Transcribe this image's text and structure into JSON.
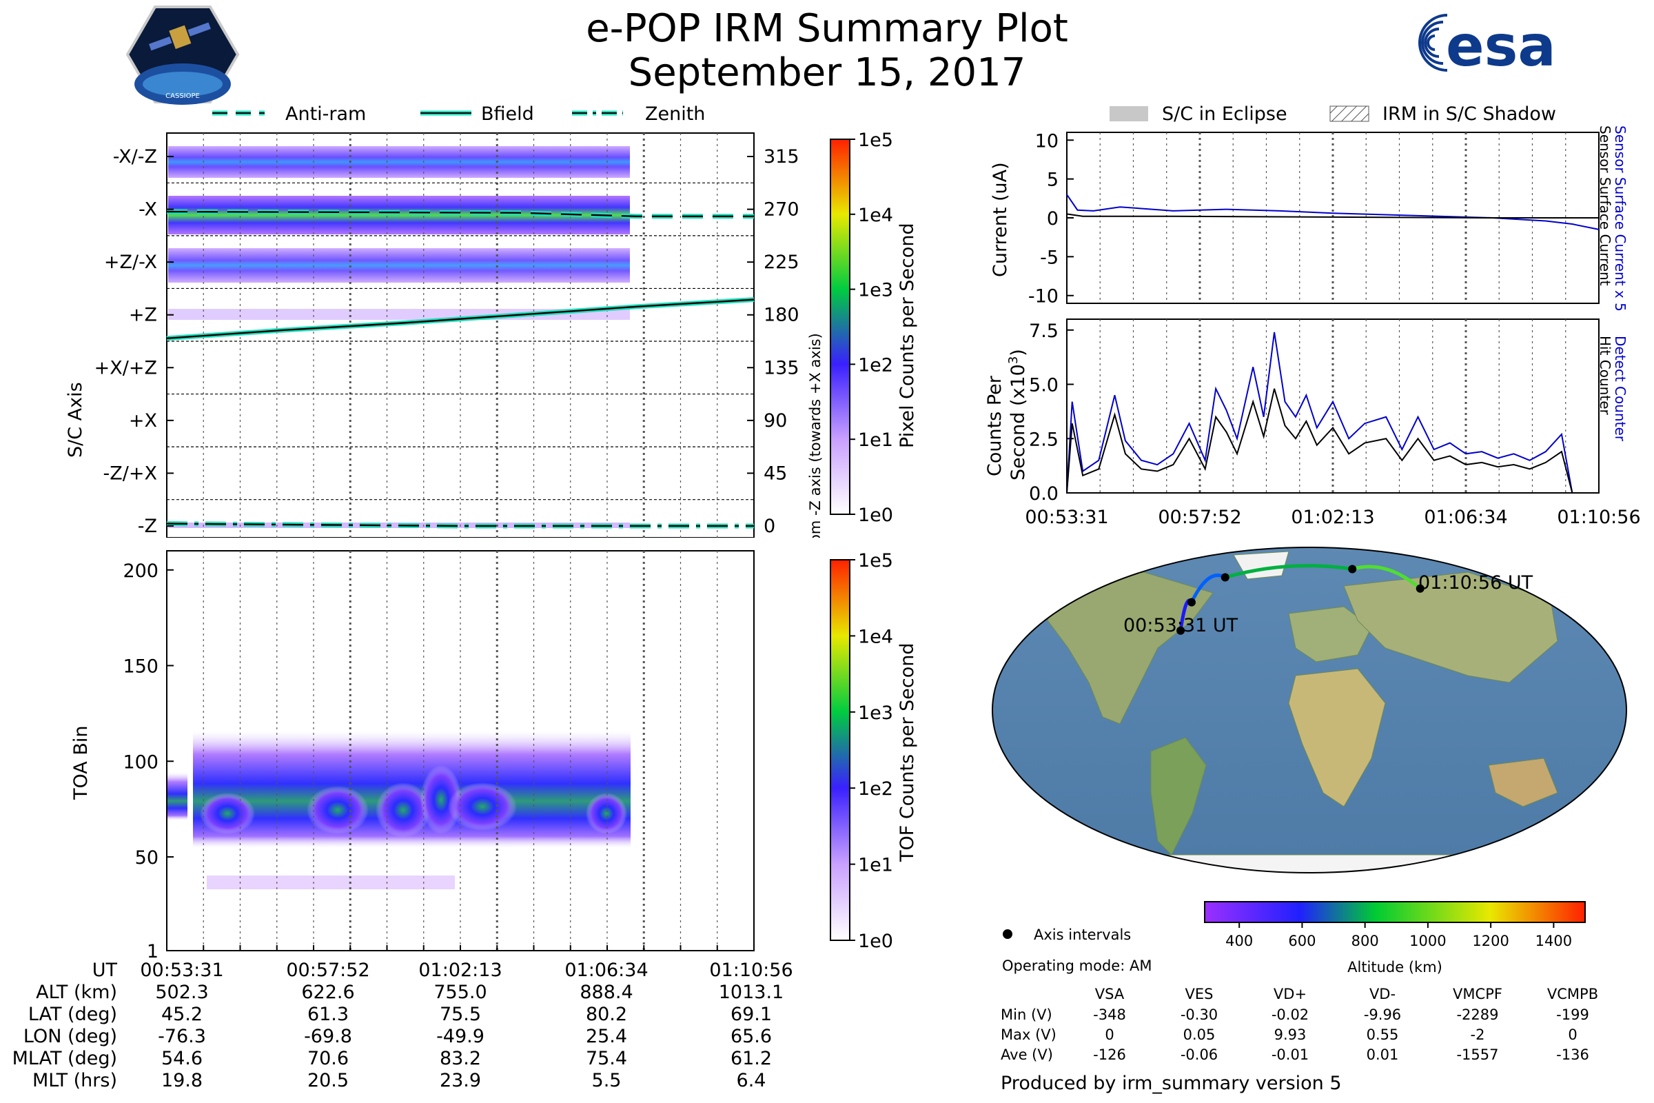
{
  "header": {
    "title": "e-POP IRM Summary Plot",
    "date": "September 15, 2017",
    "cassiope_label": "CASSIOPE",
    "esa_logo_text": "esa"
  },
  "colors": {
    "bfield": "#000000",
    "bfield_halo": "#22ddbb",
    "detect_counter": "#0000cc",
    "colormap": [
      "#ffffff",
      "#e0c4ff",
      "#9b30ff",
      "#2020ff",
      "#00cc33",
      "#e8e800",
      "#ff2000"
    ]
  },
  "legend_top_left": {
    "items": [
      {
        "label": "Anti-ram",
        "style": "dashed"
      },
      {
        "label": "Bfield",
        "style": "solid"
      },
      {
        "label": "Zenith",
        "style": "dashdot"
      }
    ]
  },
  "legend_top_right": {
    "items": [
      {
        "label": "S/C in Eclipse",
        "style": "grey-fill"
      },
      {
        "label": "IRM in S/C Shadow",
        "style": "hatch"
      }
    ]
  },
  "chart_data": [
    {
      "id": "angle_panel",
      "type": "heatmap",
      "ylabel": "S/C Axis",
      "ylabel_right": "Angle from -Z axis (towards +X axis)",
      "y_axis_labels": [
        "-X/-Z",
        "-X",
        "+Z/-X",
        "+Z",
        "+X/+Z",
        "+X",
        "-Z/+X",
        "-Z"
      ],
      "right_ticks": [
        315,
        270,
        225,
        180,
        135,
        90,
        45,
        0
      ],
      "ylim": [
        -10,
        335
      ],
      "colorbar": {
        "label": "Pixel Counts per Second",
        "ticks": [
          "1e0",
          "1e1",
          "1e2",
          "1e3",
          "1e4",
          "1e5"
        ]
      },
      "lines": [
        {
          "name": "Anti-ram",
          "style": "dashed",
          "x": [
            0.0,
            0.6,
            0.8,
            1.0
          ],
          "y": [
            268,
            267,
            264,
            264
          ]
        },
        {
          "name": "Bfield",
          "style": "solid",
          "x": [
            0.0,
            0.2,
            0.4,
            0.6,
            0.8,
            1.0
          ],
          "y": [
            160,
            167,
            173,
            180,
            187,
            193
          ]
        },
        {
          "name": "Zenith",
          "style": "dashdot",
          "x": [
            0.0,
            0.5,
            1.0
          ],
          "y": [
            2,
            0,
            0
          ]
        }
      ]
    },
    {
      "id": "toa_panel",
      "type": "heatmap",
      "ylabel": "TOA Bin",
      "yticks": [
        1,
        50,
        100,
        150,
        200
      ],
      "ylim": [
        1,
        210
      ],
      "colorbar": {
        "label": "TOF Counts per Second",
        "ticks": [
          "1e0",
          "1e1",
          "1e2",
          "1e3",
          "1e4",
          "1e5"
        ]
      }
    },
    {
      "id": "current_panel",
      "type": "line",
      "ylabel": "Current (uA)",
      "ylim": [
        -11,
        11
      ],
      "yticks": [
        10,
        5,
        0,
        -5,
        -10
      ],
      "legend": [
        "Sensor Surface Current x 5",
        "Sensor Surface Current"
      ],
      "series": [
        {
          "name": "Sensor Surface Current x 5",
          "color": "#0000cc",
          "x": [
            0,
            0.02,
            0.05,
            0.1,
            0.2,
            0.3,
            0.4,
            0.5,
            0.6,
            0.7,
            0.8,
            0.85,
            0.9,
            0.95,
            1.0
          ],
          "y": [
            3.0,
            1.0,
            0.9,
            1.4,
            0.9,
            1.1,
            0.9,
            0.6,
            0.4,
            0.2,
            0.0,
            -0.2,
            -0.4,
            -0.8,
            -1.5
          ]
        },
        {
          "name": "Sensor Surface Current",
          "color": "#000000",
          "x": [
            0,
            0.03,
            0.2,
            0.5,
            0.8,
            1.0
          ],
          "y": [
            0.5,
            0.2,
            0.2,
            0.1,
            0.0,
            0.0
          ]
        }
      ]
    },
    {
      "id": "counts_panel",
      "type": "line",
      "ylabel": "Counts Per Second (x10^3)",
      "ylim": [
        0,
        8
      ],
      "yticks": [
        0.0,
        2.5,
        5.0,
        7.5
      ],
      "xticks": [
        "00:53:31",
        "00:57:52",
        "01:02:13",
        "01:06:34",
        "01:10:56"
      ],
      "legend": [
        "Detect Counter",
        "Hit Counter"
      ],
      "series": [
        {
          "name": "Detect Counter",
          "color": "#0000cc",
          "x": [
            0,
            0.01,
            0.03,
            0.06,
            0.09,
            0.11,
            0.14,
            0.17,
            0.2,
            0.23,
            0.26,
            0.28,
            0.3,
            0.32,
            0.35,
            0.37,
            0.39,
            0.41,
            0.43,
            0.45,
            0.47,
            0.5,
            0.53,
            0.56,
            0.6,
            0.63,
            0.66,
            0.69,
            0.72,
            0.75,
            0.78,
            0.81,
            0.84,
            0.87,
            0.9,
            0.93,
            0.95,
            0.96,
            1.0
          ],
          "y": [
            0,
            4.2,
            1.0,
            1.5,
            4.5,
            2.4,
            1.5,
            1.3,
            1.8,
            3.2,
            1.5,
            4.8,
            3.8,
            2.5,
            5.8,
            3.5,
            7.4,
            4.2,
            3.5,
            4.5,
            3.0,
            4.2,
            2.5,
            3.2,
            3.5,
            2.0,
            3.5,
            2.0,
            2.3,
            1.8,
            1.9,
            1.6,
            1.8,
            1.5,
            1.9,
            2.7,
            0.0,
            0.0,
            0.0
          ]
        },
        {
          "name": "Hit Counter",
          "color": "#000000",
          "x": [
            0,
            0.01,
            0.03,
            0.06,
            0.09,
            0.11,
            0.14,
            0.17,
            0.2,
            0.23,
            0.26,
            0.28,
            0.3,
            0.32,
            0.35,
            0.37,
            0.39,
            0.41,
            0.43,
            0.45,
            0.47,
            0.5,
            0.53,
            0.56,
            0.6,
            0.63,
            0.66,
            0.69,
            0.72,
            0.75,
            0.78,
            0.81,
            0.84,
            0.87,
            0.9,
            0.93,
            0.95,
            0.96,
            1.0
          ],
          "y": [
            0,
            3.2,
            0.8,
            1.1,
            3.6,
            1.8,
            1.1,
            1.0,
            1.3,
            2.5,
            1.1,
            3.5,
            2.8,
            1.8,
            4.2,
            2.6,
            4.8,
            3.1,
            2.5,
            3.3,
            2.2,
            3.0,
            1.8,
            2.3,
            2.5,
            1.5,
            2.5,
            1.5,
            1.7,
            1.3,
            1.4,
            1.2,
            1.3,
            1.1,
            1.4,
            1.9,
            0.0,
            0.0,
            0.0
          ]
        }
      ]
    },
    {
      "id": "altitude_colorbar",
      "type": "colorbar",
      "label": "Altitude (km)",
      "ticks": [
        400,
        600,
        800,
        1000,
        1200,
        1400
      ],
      "range": [
        290,
        1500
      ]
    }
  ],
  "map": {
    "start_label": "00:53:31 UT",
    "end_label": "01:10:56 UT",
    "track_lonlat": [
      [
        -76.3,
        45.2
      ],
      [
        -69.8,
        61.3
      ],
      [
        -49.9,
        75.5
      ],
      [
        25.4,
        80.2
      ],
      [
        65.6,
        69.1
      ]
    ],
    "legend_axis": "Axis intervals",
    "operating_mode": "Operating mode: AM"
  },
  "ephemeris": {
    "labels": [
      "UT",
      "ALT (km)",
      "LAT (deg)",
      "LON (deg)",
      "MLAT (deg)",
      "MLT (hrs)"
    ],
    "columns": [
      [
        "00:53:31",
        "502.3",
        "45.2",
        "-76.3",
        "54.6",
        "19.8"
      ],
      [
        "00:57:52",
        "622.6",
        "61.3",
        "-69.8",
        "70.6",
        "20.5"
      ],
      [
        "01:02:13",
        "755.0",
        "75.5",
        "-49.9",
        "83.2",
        "23.9"
      ],
      [
        "01:06:34",
        "888.4",
        "80.2",
        "25.4",
        "75.4",
        "5.5"
      ],
      [
        "01:10:56",
        "1013.1",
        "69.1",
        "65.6",
        "61.2",
        "6.4"
      ]
    ]
  },
  "voltages": {
    "headers": [
      "VSA",
      "VES",
      "VD+",
      "VD-",
      "VMCPF",
      "VCMPB"
    ],
    "rows": [
      {
        "label": "Min (V)",
        "values": [
          "-348",
          "-0.30",
          "-0.02",
          "-9.96",
          "-2289",
          "-199"
        ]
      },
      {
        "label": "Max (V)",
        "values": [
          "0",
          "0.05",
          "9.93",
          "0.55",
          "-2",
          "0"
        ]
      },
      {
        "label": "Ave (V)",
        "values": [
          "-126",
          "-0.06",
          "-0.01",
          "0.01",
          "-1557",
          "-136"
        ]
      }
    ]
  },
  "footer": "Produced by irm_summary version 5"
}
